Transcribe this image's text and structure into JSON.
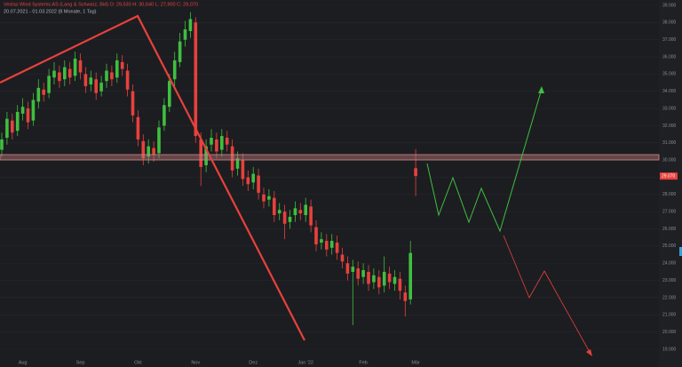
{
  "chart_data": {
    "type": "candlestick",
    "title": "Vestas Wind Systems AS (Lang & Schwarz, Bid)  O: 29,530  H: 30,640  L: 27,900  C: 29,070",
    "subtitle": "20.07.2021 - 01.03.2022 (8 Monate, 1 Tag)",
    "last_label": "29.070",
    "up_color": "#3fbf3f",
    "down_color": "#e8413c",
    "ylim": [
      19,
      39
    ],
    "yticks": [
      {
        "value": 19,
        "label": "19.000"
      },
      {
        "value": 20,
        "label": "20.000"
      },
      {
        "value": 21,
        "label": "21.000"
      },
      {
        "value": 22,
        "label": "22.000"
      },
      {
        "value": 23,
        "label": "23.000"
      },
      {
        "value": 24,
        "label": "24.000"
      },
      {
        "value": 25,
        "label": "25.000"
      },
      {
        "value": 26,
        "label": "26.000"
      },
      {
        "value": 27,
        "label": "27.000"
      },
      {
        "value": 28,
        "label": "28.000"
      },
      {
        "value": 29,
        "label": "29.000"
      },
      {
        "value": 30,
        "label": "30.000"
      },
      {
        "value": 31,
        "label": "31.000"
      },
      {
        "value": 32,
        "label": "32.000"
      },
      {
        "value": 33,
        "label": "33.000"
      },
      {
        "value": 34,
        "label": "34.000"
      },
      {
        "value": 35,
        "label": "35.000"
      },
      {
        "value": 36,
        "label": "36.000"
      },
      {
        "value": 37,
        "label": "37.000"
      },
      {
        "value": 38,
        "label": "38.000"
      },
      {
        "value": 39,
        "label": "39.000"
      }
    ],
    "grid": true,
    "categories": [
      null,
      null,
      null,
      null,
      "Aug",
      null,
      null,
      null,
      null,
      null,
      null,
      null,
      null,
      null,
      null,
      "Sep",
      null,
      null,
      null,
      null,
      null,
      null,
      null,
      null,
      null,
      null,
      "Okt",
      null,
      null,
      null,
      null,
      null,
      null,
      null,
      null,
      null,
      null,
      "Nov",
      null,
      null,
      null,
      null,
      null,
      null,
      null,
      null,
      null,
      null,
      "Dez",
      null,
      null,
      null,
      null,
      null,
      null,
      null,
      null,
      null,
      "Jan '22",
      null,
      null,
      null,
      null,
      null,
      null,
      null,
      null,
      null,
      null,
      "Feb",
      null,
      null,
      null,
      null,
      null,
      null,
      null,
      null,
      null,
      "Mär"
    ],
    "open": [
      30.6,
      31.3,
      32.3,
      31.7,
      32.7,
      33.0,
      32.3,
      33.4,
      34.1,
      33.9,
      34.8,
      35.1,
      34.7,
      35.3,
      34.9,
      35.8,
      35.0,
      34.4,
      34.7,
      34.0,
      34.6,
      35.1,
      34.8,
      35.7,
      35.2,
      34.0,
      32.5,
      31.1,
      30.2,
      30.7,
      30.4,
      32.0,
      33.1,
      34.7,
      35.7,
      37.0,
      37.5,
      38.0,
      31.2,
      29.7,
      30.9,
      31.2,
      30.6,
      31.3,
      30.8,
      29.5,
      30.0,
      29.0,
      28.7,
      29.1,
      28.0,
      27.7,
      27.8,
      26.9,
      27.0,
      26.4,
      26.8,
      27.1,
      26.8,
      27.3,
      26.1,
      25.2,
      25.3,
      24.9,
      25.2,
      24.5,
      24.0,
      23.5,
      23.7,
      23.2,
      23.5,
      22.9,
      23.2,
      22.7,
      23.4,
      22.8,
      23.1,
      22.3,
      21.9,
      29.53
    ],
    "high": [
      31.6,
      32.8,
      32.7,
      33.2,
      33.6,
      33.4,
      33.9,
      34.7,
      34.5,
      35.3,
      35.7,
      35.5,
      35.8,
      35.7,
      36.3,
      36.2,
      35.4,
      35.2,
      35.1,
      34.9,
      35.6,
      35.5,
      36.2,
      36.1,
      35.6,
      34.4,
      32.9,
      31.5,
      31.2,
      31.1,
      32.3,
      33.6,
      35.0,
      36.3,
      37.4,
      38.1,
      38.6,
      38.3,
      31.6,
      31.2,
      31.8,
      31.6,
      31.8,
      31.7,
      31.2,
      30.5,
      30.4,
      29.4,
      29.6,
      29.5,
      28.4,
      28.3,
      28.2,
      27.5,
      27.4,
      27.1,
      27.6,
      27.5,
      27.8,
      27.7,
      26.5,
      25.8,
      25.7,
      25.7,
      25.6,
      24.9,
      24.4,
      24.2,
      24.1,
      24.0,
      23.9,
      23.7,
      23.6,
      24.4,
      23.8,
      23.6,
      23.5,
      22.7,
      25.3,
      30.64
    ],
    "low": [
      30.2,
      30.9,
      31.2,
      31.4,
      32.3,
      31.8,
      32.0,
      33.0,
      33.4,
      33.6,
      34.4,
      34.2,
      34.3,
      34.4,
      34.6,
      34.7,
      33.9,
      34.0,
      33.5,
      33.7,
      34.2,
      34.3,
      34.5,
      34.9,
      33.7,
      32.2,
      30.8,
      29.7,
      29.8,
      29.9,
      30.1,
      31.7,
      32.8,
      34.3,
      35.4,
      36.6,
      37.1,
      31.0,
      28.5,
      29.3,
      30.5,
      30.1,
      30.2,
      30.5,
      29.0,
      29.1,
      28.5,
      28.2,
      28.3,
      27.7,
      27.2,
      27.3,
      26.4,
      26.5,
      25.4,
      26.0,
      26.4,
      26.5,
      26.4,
      25.8,
      24.7,
      24.8,
      24.4,
      24.5,
      24.2,
      23.7,
      23.0,
      20.4,
      22.7,
      22.8,
      22.4,
      22.5,
      22.2,
      22.3,
      22.5,
      22.4,
      21.9,
      20.9,
      21.6,
      27.9
    ],
    "close": [
      31.2,
      32.4,
      31.6,
      32.8,
      33.1,
      32.2,
      33.5,
      34.2,
      33.8,
      34.9,
      35.2,
      34.6,
      35.4,
      34.8,
      35.9,
      35.1,
      34.3,
      34.8,
      33.9,
      34.5,
      35.2,
      34.7,
      35.8,
      35.3,
      34.1,
      32.6,
      31.2,
      30.1,
      30.8,
      30.3,
      31.9,
      33.2,
      34.6,
      35.8,
      36.9,
      37.6,
      38.2,
      31.4,
      29.6,
      30.8,
      31.3,
      30.5,
      31.4,
      30.9,
      29.4,
      30.1,
      28.9,
      28.6,
      29.2,
      28.1,
      27.6,
      27.9,
      26.8,
      27.1,
      26.3,
      26.7,
      27.2,
      26.9,
      27.4,
      26.2,
      25.1,
      25.4,
      24.8,
      25.3,
      24.6,
      24.1,
      23.4,
      23.8,
      23.1,
      23.6,
      22.8,
      23.3,
      22.6,
      23.5,
      22.9,
      23.2,
      22.4,
      21.8,
      24.6,
      29.07
    ]
  }
}
